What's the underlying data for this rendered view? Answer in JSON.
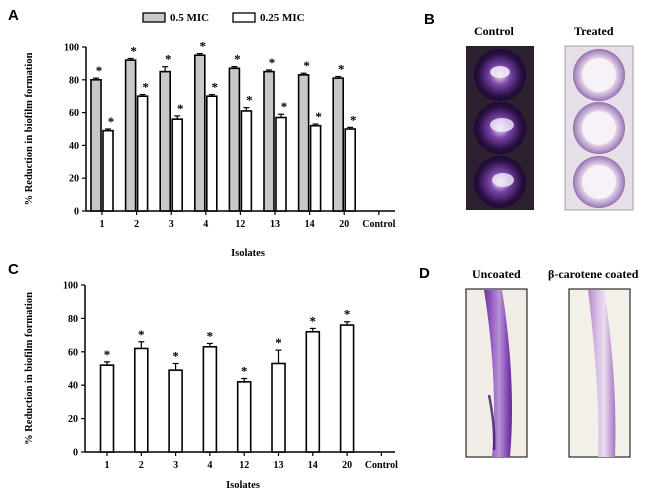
{
  "panels": {
    "a": "A",
    "b": "B",
    "c": "C",
    "d": "D"
  },
  "photo_b": {
    "control_label": "Control",
    "treated_label": "Treated"
  },
  "photo_d": {
    "uncoated_label": "Uncoated",
    "coated_label": "β-carotene coated"
  },
  "colors": {
    "gray_bar": "#c8c8c8",
    "white_bar": "#ffffff",
    "axis": "#000000",
    "crystal_violet": "#5a2a8a",
    "catheter_purple": "#8a52b5"
  },
  "chart_data": [
    {
      "type": "bar",
      "panel": "A",
      "categories": [
        "1",
        "2",
        "3",
        "4",
        "12",
        "13",
        "14",
        "20",
        "Control"
      ],
      "series": [
        {
          "name": "0.5 MIC",
          "values": [
            80,
            92,
            85,
            95,
            87,
            85,
            83,
            81,
            null
          ],
          "errors": [
            1,
            1,
            3,
            1,
            1,
            1,
            1,
            1,
            null
          ],
          "stars": [
            "*",
            "*",
            "*",
            "*",
            "*",
            "*",
            "*",
            "*",
            ""
          ]
        },
        {
          "name": "0.25 MIC",
          "values": [
            49,
            70,
            56,
            70,
            61,
            57,
            52,
            50,
            null
          ],
          "errors": [
            1,
            1,
            2,
            1,
            2,
            2,
            1,
            1,
            null
          ],
          "stars": [
            "*",
            "*",
            "*",
            "*",
            "*",
            "*",
            "*",
            "*",
            ""
          ]
        }
      ],
      "ylim": [
        0,
        100
      ],
      "yticks": [
        "0",
        "20",
        "40",
        "60",
        "80",
        "100"
      ],
      "ylabel": "% Reduction in biofilm formation",
      "xlabel": "Isolates",
      "legend": [
        "0.5 MIC",
        "0.25 MIC"
      ]
    },
    {
      "type": "bar",
      "panel": "C",
      "categories": [
        "1",
        "2",
        "3",
        "4",
        "12",
        "13",
        "14",
        "20",
        "Control"
      ],
      "series": [
        {
          "name": "β-carotene",
          "values": [
            52,
            62,
            49,
            63,
            42,
            53,
            72,
            76,
            null
          ],
          "errors": [
            2,
            4,
            4,
            2,
            2,
            8,
            2,
            2,
            null
          ],
          "stars": [
            "*",
            "*",
            "*",
            "*",
            "*",
            "*",
            "*",
            "*",
            ""
          ]
        }
      ],
      "ylim": [
        0,
        100
      ],
      "yticks": [
        "0",
        "20",
        "40",
        "60",
        "80",
        "100"
      ],
      "ylabel": "% Reduction in biofilm formation",
      "xlabel": "Isolates"
    }
  ]
}
